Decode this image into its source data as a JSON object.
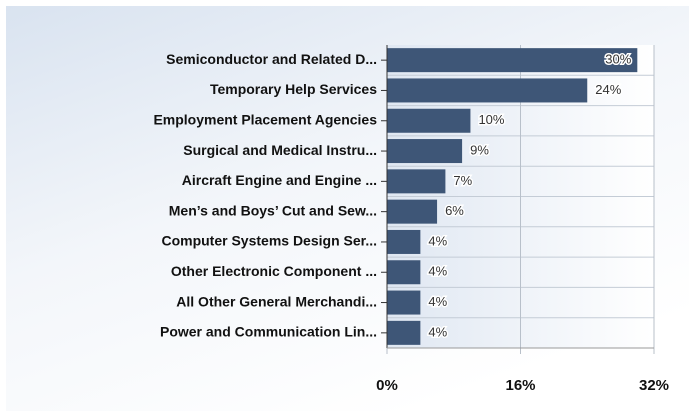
{
  "chart_data": {
    "type": "bar",
    "orientation": "horizontal",
    "categories": [
      "Semiconductor and Related D...",
      "Temporary Help Services",
      "Employment Placement Agencies",
      "Surgical and Medical Instru...",
      "Aircraft Engine and Engine ...",
      "Men’s and Boys’ Cut and Sew...",
      "Computer Systems Design Ser...",
      "Other Electronic Component ...",
      "All Other General Merchandi...",
      "Power and Communication Lin..."
    ],
    "values": [
      30,
      24,
      10,
      9,
      7,
      6,
      4,
      4,
      4,
      4
    ],
    "value_labels": [
      "30%",
      "24%",
      "10%",
      "9%",
      "7%",
      "6%",
      "4%",
      "4%",
      "4%",
      "4%"
    ],
    "color": "#3e5677",
    "xlim": [
      0,
      32
    ],
    "xticks": [
      {
        "value": 0,
        "label": "0%"
      },
      {
        "value": 16,
        "label": "16%"
      },
      {
        "value": 32,
        "label": "32%"
      }
    ],
    "grid": true
  }
}
